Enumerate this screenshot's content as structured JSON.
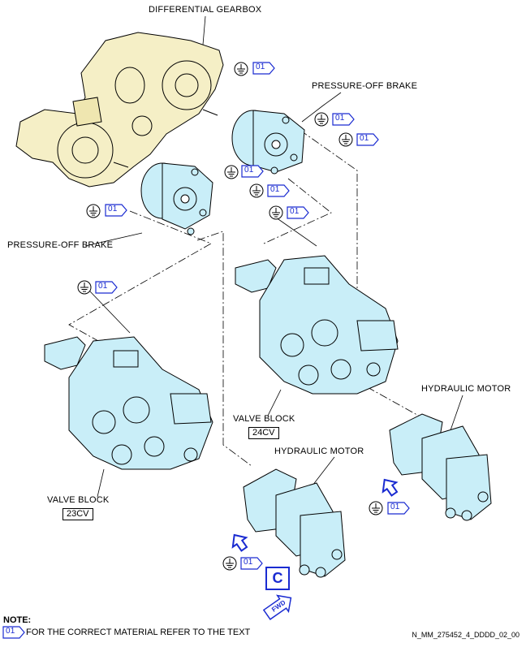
{
  "labels": {
    "differential_gearbox": "DIFFERENTIAL GEARBOX",
    "pressure_off_brake_right": "PRESSURE-OFF BRAKE",
    "pressure_off_brake_left": "PRESSURE-OFF BRAKE",
    "valve_block_24": "VALVE BLOCK",
    "valve_block_24_code": "24CV",
    "valve_block_23": "VALVE BLOCK",
    "valve_block_23_code": "23CV",
    "hydraulic_motor_right": "HYDRAULIC MOTOR",
    "hydraulic_motor_center": "HYDRAULIC MOTOR"
  },
  "material_tag": "01",
  "view_callout": "C",
  "fwd_label": "FWD",
  "note": {
    "title": "NOTE:",
    "tag": "01",
    "text": "FOR THE CORRECT MATERIAL REFER TO THE TEXT"
  },
  "reference": "N_MM_275452_4_DDDD_02_00",
  "colors": {
    "gearbox_fill": "#f5efc6",
    "component_fill": "#c9eef8",
    "tag_blue": "#1a2bd1",
    "outline": "#000000"
  }
}
